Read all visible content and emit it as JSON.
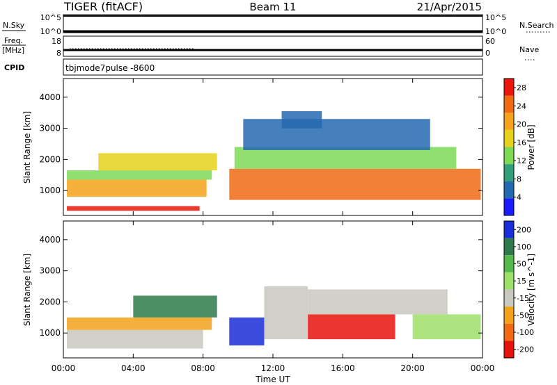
{
  "header": {
    "title": "TIGER (fitACF)",
    "beam": "Beam 11",
    "date": "21/Apr/2015"
  },
  "aux_panels": {
    "nsky_label": "N.Sky",
    "nsky_ticks": [
      "10^5",
      "10^0"
    ],
    "nsearch_label": "N.Search",
    "nsearch_ticks": [
      "10^5",
      "10^0"
    ],
    "freq_label": "Freq.",
    "freq_unit": "[MHz]",
    "freq_ticks": [
      "18",
      "8"
    ],
    "nave_label": "Nave",
    "nave_ticks": [
      "60",
      "0"
    ],
    "cpid_label": "CPID",
    "cpid_value": "tbjmode7pulse -8600"
  },
  "chart_data": [
    {
      "type": "heatmap",
      "title": "",
      "xlabel": "Time UT",
      "ylabel": "Slant Range [km]",
      "x_ticks": [
        "00:00",
        "04:00",
        "08:00",
        "12:00",
        "16:00",
        "20:00",
        "00:00"
      ],
      "xlim_hours": [
        0,
        24
      ],
      "y_ticks": [
        "1000",
        "2000",
        "3000",
        "4000"
      ],
      "ylim": [
        200,
        4600
      ],
      "colorbar": {
        "label": "Power [dB]",
        "ticks": [
          "4",
          "8",
          "12",
          "16",
          "20",
          "24",
          "28"
        ],
        "range": [
          0,
          30
        ],
        "colors": [
          "#1a1aff",
          "#2468b0",
          "#31a07a",
          "#7ed957",
          "#e6d21a",
          "#f5a31a",
          "#f06a14",
          "#e8160c"
        ]
      },
      "regions": [
        {
          "t": [
            0.2,
            7.8
          ],
          "r": [
            350,
            500
          ],
          "value": 28
        },
        {
          "t": [
            0.2,
            8.2
          ],
          "r": [
            800,
            1350
          ],
          "value": 22
        },
        {
          "t": [
            0.2,
            8.5
          ],
          "r": [
            1350,
            1650
          ],
          "value": 12
        },
        {
          "t": [
            2.0,
            8.8
          ],
          "r": [
            1650,
            2200
          ],
          "value": 18
        },
        {
          "t": [
            9.5,
            23.9
          ],
          "r": [
            700,
            1700
          ],
          "value": 24
        },
        {
          "t": [
            9.8,
            22.5
          ],
          "r": [
            1700,
            2400
          ],
          "value": 12
        },
        {
          "t": [
            10.3,
            21.0
          ],
          "r": [
            2300,
            3300
          ],
          "value": 6
        },
        {
          "t": [
            12.5,
            14.8
          ],
          "r": [
            3000,
            3550
          ],
          "value": 5
        }
      ]
    },
    {
      "type": "heatmap",
      "title": "",
      "xlabel": "Time UT",
      "ylabel": "Slant Range [km]",
      "x_ticks": [
        "00:00",
        "04:00",
        "08:00",
        "12:00",
        "16:00",
        "20:00",
        "00:00"
      ],
      "xlim_hours": [
        0,
        24
      ],
      "y_ticks": [
        "1000",
        "2000",
        "3000",
        "4000"
      ],
      "ylim": [
        200,
        4600
      ],
      "colorbar": {
        "label": "Velocity [m s^-1]",
        "ticks": [
          "200",
          "100",
          "50",
          "15",
          "-15",
          "-50",
          "-100",
          "-200"
        ],
        "colors": [
          "#1a2ed8",
          "#2f7a4a",
          "#55b84a",
          "#9de06a",
          "#c8c8c0",
          "#f2a21a",
          "#f06a14",
          "#e6120c"
        ]
      },
      "regions": [
        {
          "t": [
            0.2,
            8.0
          ],
          "r": [
            500,
            1100
          ],
          "value": -15
        },
        {
          "t": [
            0.2,
            8.5
          ],
          "r": [
            1100,
            1500
          ],
          "value": -50
        },
        {
          "t": [
            4.0,
            8.8
          ],
          "r": [
            1500,
            2200
          ],
          "value": 150
        },
        {
          "t": [
            9.5,
            11.5
          ],
          "r": [
            600,
            1500
          ],
          "value": 200
        },
        {
          "t": [
            11.5,
            14.0
          ],
          "r": [
            800,
            2500
          ],
          "value": 0
        },
        {
          "t": [
            14.0,
            19.0
          ],
          "r": [
            800,
            1600
          ],
          "value": -200
        },
        {
          "t": [
            14.0,
            22.0
          ],
          "r": [
            1600,
            2400
          ],
          "value": 0
        },
        {
          "t": [
            20.0,
            23.9
          ],
          "r": [
            800,
            1600
          ],
          "value": 40
        }
      ]
    }
  ]
}
